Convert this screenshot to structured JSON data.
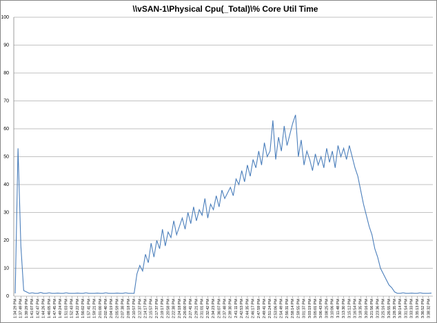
{
  "chart_data": {
    "type": "line",
    "title": "\\\\vSAN-1\\Physical Cpu(_Total)\\% Core Util Time",
    "categories": [
      "1:34:29 PM",
      null,
      "1:37:49 PM",
      null,
      "1:39:29 PM",
      null,
      "1:41:07 PM",
      null,
      "1:42:47 PM",
      null,
      "1:44:26 PM",
      null,
      "1:46:05 PM",
      null,
      "1:47:45 PM",
      null,
      "1:49:24 PM",
      null,
      "1:51:03 PM",
      null,
      "1:52:43 PM",
      null,
      "1:54:22 PM",
      null,
      "1:56:02 PM",
      null,
      "1:57:41 PM",
      null,
      "1:59:21 PM",
      null,
      "2:01:00 PM",
      null,
      "2:02:40 PM",
      null,
      "2:04:19 PM",
      null,
      "2:05:59 PM",
      null,
      "2:07:38 PM",
      null,
      "2:09:18 PM",
      null,
      "2:10:57 PM",
      null,
      "2:12:37 PM",
      null,
      "2:14:17 PM",
      null,
      "2:15:57 PM",
      null,
      "2:17:37 PM",
      null,
      "2:19:17 PM",
      null,
      "2:20:58 PM",
      null,
      "2:22:38 PM",
      null,
      "2:24:18 PM",
      null,
      "2:26:00 PM",
      null,
      "2:27:41 PM",
      null,
      "2:29:21 PM",
      null,
      "2:31:01 PM",
      null,
      "2:32:42 PM",
      null,
      "2:34:23 PM",
      null,
      "2:36:07 PM",
      null,
      "2:37:48 PM",
      null,
      "2:39:30 PM",
      null,
      "2:41:11 PM",
      null,
      "2:42:53 PM",
      null,
      "2:44:35 PM",
      null,
      "2:46:17 PM",
      null,
      "2:47:59 PM",
      null,
      "2:49:41 PM",
      null,
      "2:51:24 PM",
      null,
      "2:53:06 PM",
      null,
      "2:54:49 PM",
      null,
      "2:56:31 PM",
      null,
      "2:58:14 PM",
      null,
      "2:59:55 PM",
      null,
      "3:01:37 PM",
      null,
      "3:03:19 PM",
      null,
      "3:05:01 PM",
      null,
      "3:06:43 PM",
      null,
      "3:08:25 PM",
      null,
      "3:10:06 PM",
      null,
      "3:11:48 PM",
      null,
      "3:13:30 PM",
      null,
      "3:15:12 PM",
      null,
      "3:16:54 PM",
      null,
      "3:18:35 PM",
      null,
      "3:20:16 PM",
      null,
      "3:21:56 PM",
      null,
      "3:23:36 PM",
      null,
      "3:25:16 PM",
      null,
      "3:26:55 PM",
      null,
      "3:28:35 PM",
      null,
      "3:30:14 PM",
      null,
      "3:31:54 PM",
      null,
      "3:33:33 PM",
      null,
      "3:35:13 PM",
      null,
      "3:36:52 PM",
      null,
      "3:38:32 PM",
      null
    ],
    "values": [
      1,
      53,
      18,
      2,
      1.5,
      1,
      1.2,
      1,
      1,
      1.3,
      1,
      1,
      1.2,
      1,
      1,
      1.1,
      1,
      1,
      1.2,
      1,
      1,
      1,
      1.1,
      1,
      1,
      1.2,
      1,
      1,
      1,
      1.1,
      1,
      1,
      1.2,
      1,
      1,
      1,
      1.1,
      1,
      1,
      1.2,
      1,
      1,
      1,
      8,
      11,
      9,
      15,
      12,
      19,
      14,
      20,
      17,
      24,
      18,
      23,
      21,
      27,
      22,
      25,
      28,
      24,
      30,
      26,
      32,
      27,
      31,
      29,
      35,
      28,
      33,
      31,
      36,
      32,
      38,
      35,
      37,
      39,
      36,
      42,
      40,
      45,
      41,
      47,
      43,
      49,
      46,
      52,
      47,
      55,
      50,
      52,
      63,
      49,
      57,
      52,
      61,
      54,
      58,
      62,
      65,
      50,
      56,
      47,
      52,
      49,
      45,
      51,
      47,
      50,
      46,
      53,
      48,
      52,
      46,
      54,
      50,
      53,
      49,
      54,
      50,
      46,
      43,
      38,
      33,
      29,
      25,
      22,
      17,
      14,
      10,
      8,
      6,
      4,
      3,
      1.5,
      1,
      1,
      1.2,
      1,
      1,
      1.1,
      1,
      1,
      1.2,
      1,
      1,
      1,
      1.1
    ],
    "color": "#4a7ebb",
    "ylim": [
      0,
      100
    ],
    "yticks": [
      0,
      10,
      20,
      30,
      40,
      50,
      60,
      70,
      80,
      90,
      100
    ],
    "grid": true
  }
}
